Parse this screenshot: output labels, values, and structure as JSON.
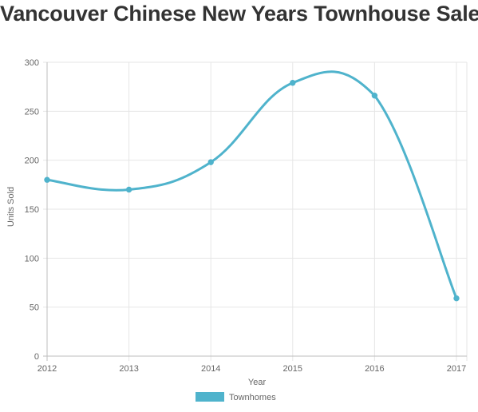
{
  "chart_data": {
    "type": "line",
    "title": "Vancouver Chinese New Years Townhouse Sales",
    "xlabel": "Year",
    "ylabel": "Units Sold",
    "categories": [
      "2012",
      "2013",
      "2014",
      "2015",
      "2016",
      "2017"
    ],
    "series": [
      {
        "name": "Townhomes",
        "values": [
          180,
          170,
          198,
          279,
          266,
          59
        ],
        "color": "#4fb3cc"
      }
    ],
    "ylim": [
      0,
      300
    ],
    "yticks": [
      "0",
      "50",
      "100",
      "150",
      "200",
      "250",
      "300"
    ],
    "grid": true,
    "legend_position": "bottom"
  }
}
